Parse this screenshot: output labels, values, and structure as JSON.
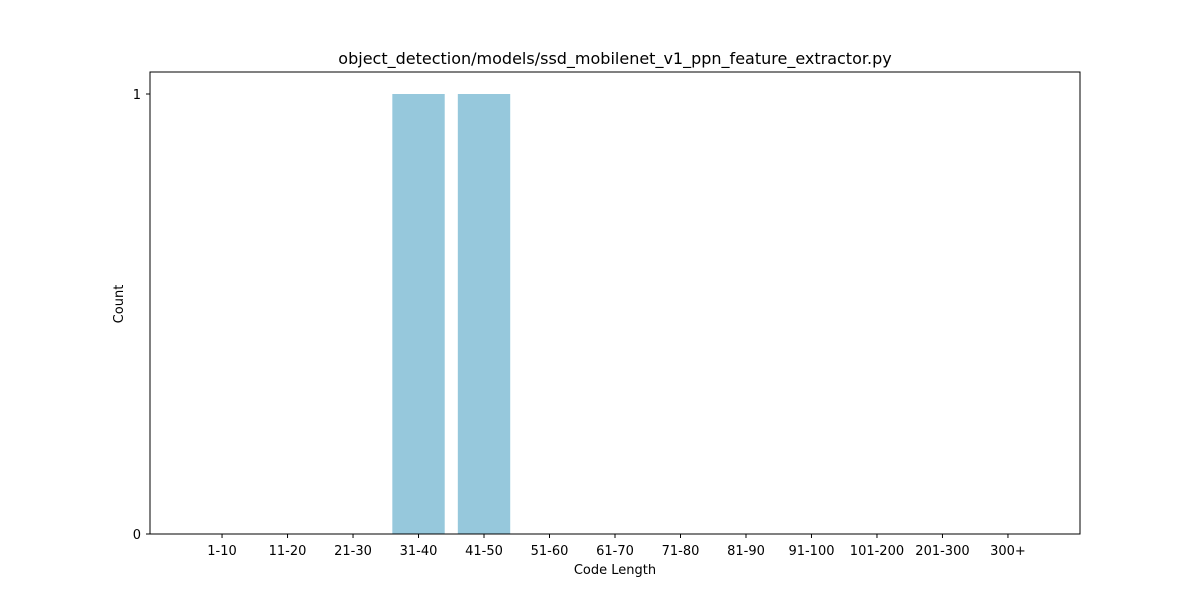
{
  "chart_data": {
    "type": "bar",
    "title": "object_detection/models/ssd_mobilenet_v1_ppn_feature_extractor.py",
    "xlabel": "Code Length",
    "ylabel": "Count",
    "categories": [
      "1-10",
      "11-20",
      "21-30",
      "31-40",
      "41-50",
      "51-60",
      "61-70",
      "71-80",
      "81-90",
      "91-100",
      "101-200",
      "201-300",
      "300+"
    ],
    "values": [
      0,
      0,
      0,
      1,
      1,
      0,
      0,
      0,
      0,
      0,
      0,
      0,
      0
    ],
    "ylim": [
      0,
      1.05
    ],
    "yticks": [
      0,
      1
    ],
    "bar_color": "#96c8dc",
    "grid": false,
    "legend": "none"
  }
}
